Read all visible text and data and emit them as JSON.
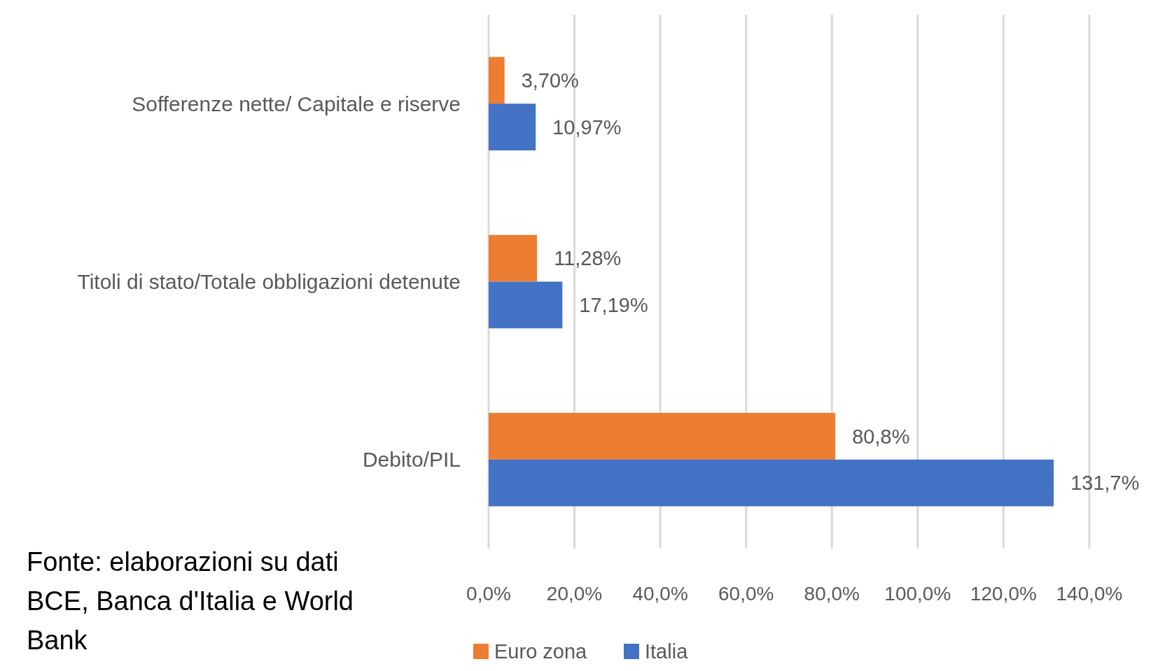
{
  "chart_data": {
    "type": "bar",
    "orientation": "horizontal",
    "categories": [
      "Sofferenze nette/ Capitale e riserve",
      "Titoli di stato/Totale obbligazioni detenute",
      "Debito/PIL"
    ],
    "series": [
      {
        "name": "Euro zona",
        "color": "#ed7d31",
        "values": [
          3.7,
          11.28,
          80.8
        ],
        "value_labels": [
          "3,70%",
          "11,28%",
          "80,8%"
        ]
      },
      {
        "name": "Italia",
        "color": "#4472c4",
        "values": [
          10.97,
          17.19,
          131.7
        ],
        "value_labels": [
          "10,97%",
          "17,19%",
          "131,7%"
        ]
      }
    ],
    "xlim": [
      0,
      140
    ],
    "xticks": [
      {
        "value": 0,
        "label": "0,0%"
      },
      {
        "value": 20,
        "label": "20,0%"
      },
      {
        "value": 40,
        "label": "40,0%"
      },
      {
        "value": 60,
        "label": "60,0%"
      },
      {
        "value": 80,
        "label": "80,0%"
      },
      {
        "value": 100,
        "label": "100,0%"
      },
      {
        "value": 120,
        "label": "120,0%"
      },
      {
        "value": 140,
        "label": "140,0%"
      }
    ],
    "grid": "x",
    "legend": "bottom",
    "annotations": [
      "Fonte: elaborazioni su dati BCE, Banca d'Italia e World Bank"
    ]
  }
}
